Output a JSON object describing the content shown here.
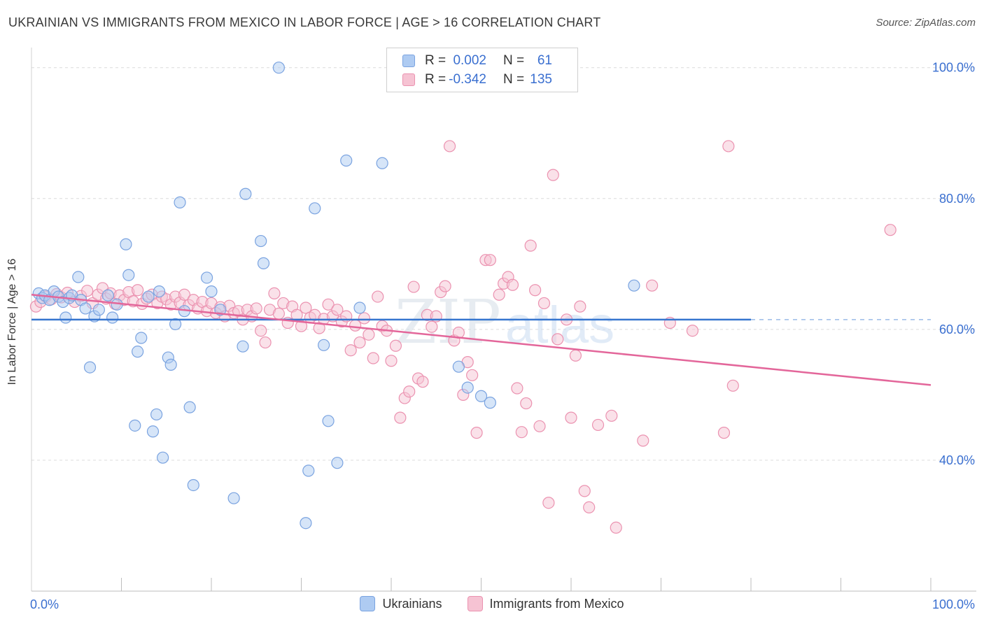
{
  "header": {
    "title": "UKRAINIAN VS IMMIGRANTS FROM MEXICO IN LABOR FORCE | AGE > 16 CORRELATION CHART",
    "source": "Source: ZipAtlas.com"
  },
  "watermark": {
    "text_zip": "ZIP",
    "text_atlas": "atlas"
  },
  "colors": {
    "ukrainians_fill": "#aecbf2",
    "ukrainians_stroke": "#7aa3e0",
    "ukrainians_line": "#3575cf",
    "mexico_fill": "#f6c3d3",
    "mexico_stroke": "#eb92b0",
    "mexico_line": "#e3669a",
    "tick_label": "#3a6fd0"
  },
  "legend": {
    "rows": [
      {
        "r_label": "R =",
        "r_value": "0.002",
        "n_label": "N =",
        "n_value": "61"
      },
      {
        "r_label": "R =",
        "r_value": "-0.342",
        "n_label": "N =",
        "n_value": "135"
      }
    ]
  },
  "chart_data": {
    "type": "scatter",
    "title": "UKRAINIAN VS IMMIGRANTS FROM MEXICO IN LABOR FORCE | AGE > 16 CORRELATION CHART",
    "xlabel": "",
    "ylabel": "In Labor Force | Age > 16",
    "xlim": [
      0,
      100
    ],
    "ylim": [
      20,
      102
    ],
    "x_tick_labels": [
      "0.0%",
      "100.0%"
    ],
    "y_ticks": [
      40,
      60,
      80,
      100
    ],
    "y_tick_labels": [
      "40.0%",
      "60.0%",
      "80.0%",
      "100.0%"
    ],
    "grid": true,
    "legend_position": "top-center",
    "series": [
      {
        "name": "Ukrainians",
        "trend": {
          "x": [
            0,
            80
          ],
          "y": [
            61.5,
            61.5
          ],
          "dashed_to": 100
        },
        "points": [
          [
            0.8,
            65.5
          ],
          [
            1.2,
            64.8
          ],
          [
            1.5,
            65.2
          ],
          [
            2.0,
            64.5
          ],
          [
            2.5,
            65.8
          ],
          [
            3.0,
            65.0
          ],
          [
            3.5,
            64.2
          ],
          [
            3.8,
            61.8
          ],
          [
            4.2,
            64.8
          ],
          [
            4.5,
            65.2
          ],
          [
            5.2,
            68.0
          ],
          [
            5.5,
            64.5
          ],
          [
            6.0,
            63.2
          ],
          [
            6.5,
            54.2
          ],
          [
            7.0,
            62.0
          ],
          [
            7.5,
            63.0
          ],
          [
            8.5,
            65.2
          ],
          [
            9.0,
            61.8
          ],
          [
            9.5,
            63.8
          ],
          [
            10.5,
            73.0
          ],
          [
            10.8,
            68.3
          ],
          [
            11.5,
            45.3
          ],
          [
            11.8,
            56.6
          ],
          [
            12.2,
            58.7
          ],
          [
            13.0,
            65.0
          ],
          [
            13.5,
            44.4
          ],
          [
            13.9,
            47.0
          ],
          [
            14.2,
            65.8
          ],
          [
            14.6,
            40.4
          ],
          [
            15.2,
            55.7
          ],
          [
            15.5,
            54.6
          ],
          [
            16.0,
            60.8
          ],
          [
            16.5,
            79.4
          ],
          [
            17.0,
            62.8
          ],
          [
            17.6,
            48.1
          ],
          [
            18.0,
            36.2
          ],
          [
            19.5,
            67.9
          ],
          [
            20.0,
            65.8
          ],
          [
            21.0,
            63.0
          ],
          [
            22.5,
            34.2
          ],
          [
            23.5,
            57.4
          ],
          [
            23.8,
            80.7
          ],
          [
            25.5,
            73.5
          ],
          [
            25.8,
            70.1
          ],
          [
            27.5,
            100.0
          ],
          [
            30.5,
            30.4
          ],
          [
            30.8,
            38.4
          ],
          [
            31.5,
            78.5
          ],
          [
            32.5,
            57.6
          ],
          [
            33.0,
            46.0
          ],
          [
            34.0,
            39.6
          ],
          [
            35.0,
            85.8
          ],
          [
            36.5,
            63.3
          ],
          [
            39.0,
            85.4
          ],
          [
            47.5,
            54.3
          ],
          [
            48.5,
            51.1
          ],
          [
            50.0,
            49.8
          ],
          [
            51.0,
            48.8
          ],
          [
            67.0,
            66.7
          ]
        ]
      },
      {
        "name": "Immigrants from Mexico",
        "trend": {
          "x": [
            0,
            100
          ],
          "y": [
            65.3,
            51.5
          ]
        },
        "points": [
          [
            0.5,
            63.5
          ],
          [
            1.0,
            64.2
          ],
          [
            1.6,
            65.0
          ],
          [
            2.2,
            64.6
          ],
          [
            2.8,
            65.4
          ],
          [
            3.3,
            64.9
          ],
          [
            4.0,
            65.6
          ],
          [
            4.8,
            64.2
          ],
          [
            5.5,
            65.1
          ],
          [
            6.2,
            65.9
          ],
          [
            6.8,
            64.0
          ],
          [
            7.4,
            65.3
          ],
          [
            7.9,
            66.3
          ],
          [
            8.3,
            64.7
          ],
          [
            8.8,
            65.5
          ],
          [
            9.3,
            63.9
          ],
          [
            9.8,
            65.2
          ],
          [
            10.3,
            64.5
          ],
          [
            10.8,
            65.7
          ],
          [
            11.3,
            64.3
          ],
          [
            11.8,
            66.0
          ],
          [
            12.3,
            63.9
          ],
          [
            12.8,
            64.7
          ],
          [
            13.4,
            65.3
          ],
          [
            14.0,
            64.0
          ],
          [
            14.5,
            65.0
          ],
          [
            15.0,
            64.6
          ],
          [
            15.5,
            63.8
          ],
          [
            16.0,
            65.0
          ],
          [
            16.5,
            64.1
          ],
          [
            17.0,
            65.3
          ],
          [
            17.5,
            63.7
          ],
          [
            18.0,
            64.5
          ],
          [
            18.5,
            63.2
          ],
          [
            19.0,
            64.2
          ],
          [
            19.5,
            62.8
          ],
          [
            20.0,
            64.0
          ],
          [
            20.5,
            62.5
          ],
          [
            21.0,
            63.4
          ],
          [
            21.5,
            62.0
          ],
          [
            22.0,
            63.6
          ],
          [
            22.5,
            62.5
          ],
          [
            23.0,
            62.8
          ],
          [
            23.5,
            61.5
          ],
          [
            24.0,
            63.0
          ],
          [
            24.5,
            62.0
          ],
          [
            25.0,
            63.2
          ],
          [
            25.5,
            59.8
          ],
          [
            26.0,
            58.0
          ],
          [
            26.5,
            63.0
          ],
          [
            27.0,
            65.5
          ],
          [
            27.5,
            62.4
          ],
          [
            28.0,
            64.0
          ],
          [
            28.5,
            61.0
          ],
          [
            29.0,
            63.5
          ],
          [
            29.5,
            62.2
          ],
          [
            30.0,
            60.5
          ],
          [
            30.5,
            63.3
          ],
          [
            31.0,
            61.8
          ],
          [
            31.5,
            62.2
          ],
          [
            32.0,
            60.2
          ],
          [
            32.5,
            61.6
          ],
          [
            33.0,
            63.8
          ],
          [
            33.5,
            62.0
          ],
          [
            34.0,
            63.0
          ],
          [
            34.5,
            61.2
          ],
          [
            35.0,
            62.0
          ],
          [
            35.5,
            56.8
          ],
          [
            36.0,
            60.6
          ],
          [
            36.5,
            58.0
          ],
          [
            37.0,
            61.7
          ],
          [
            37.5,
            59.2
          ],
          [
            38.0,
            55.6
          ],
          [
            38.5,
            65.0
          ],
          [
            39.0,
            60.5
          ],
          [
            39.5,
            59.8
          ],
          [
            40.0,
            55.2
          ],
          [
            40.5,
            57.5
          ],
          [
            41.0,
            46.5
          ],
          [
            41.5,
            49.5
          ],
          [
            42.0,
            50.5
          ],
          [
            42.5,
            66.5
          ],
          [
            43.0,
            52.5
          ],
          [
            43.5,
            52.0
          ],
          [
            44.0,
            62.2
          ],
          [
            44.5,
            60.4
          ],
          [
            45.0,
            62.0
          ],
          [
            45.5,
            65.7
          ],
          [
            46.0,
            66.6
          ],
          [
            46.5,
            88.0
          ],
          [
            47.0,
            58.3
          ],
          [
            47.5,
            59.5
          ],
          [
            48.0,
            50.0
          ],
          [
            48.5,
            55.0
          ],
          [
            49.0,
            53.0
          ],
          [
            49.5,
            44.2
          ],
          [
            50.5,
            70.6
          ],
          [
            51.0,
            70.6
          ],
          [
            52.0,
            65.3
          ],
          [
            52.5,
            67.0
          ],
          [
            53.0,
            68.0
          ],
          [
            53.5,
            66.8
          ],
          [
            54.0,
            51.0
          ],
          [
            54.5,
            44.3
          ],
          [
            55.0,
            48.7
          ],
          [
            55.5,
            72.8
          ],
          [
            56.0,
            66.0
          ],
          [
            56.5,
            45.2
          ],
          [
            57.0,
            64.0
          ],
          [
            57.5,
            33.5
          ],
          [
            58.0,
            83.6
          ],
          [
            58.5,
            58.5
          ],
          [
            59.5,
            61.5
          ],
          [
            60.0,
            46.5
          ],
          [
            60.5,
            56.0
          ],
          [
            61.0,
            63.5
          ],
          [
            61.5,
            35.3
          ],
          [
            62.0,
            32.8
          ],
          [
            63.0,
            45.4
          ],
          [
            64.5,
            46.8
          ],
          [
            65.0,
            29.7
          ],
          [
            68.0,
            43.0
          ],
          [
            69.0,
            66.7
          ],
          [
            71.0,
            61.0
          ],
          [
            73.5,
            59.8
          ],
          [
            77.0,
            44.2
          ],
          [
            77.5,
            88.0
          ],
          [
            78.0,
            51.4
          ],
          [
            95.5,
            75.2
          ]
        ]
      }
    ]
  },
  "bottom_legend": {
    "items": [
      "Ukrainians",
      "Immigrants from Mexico"
    ]
  }
}
